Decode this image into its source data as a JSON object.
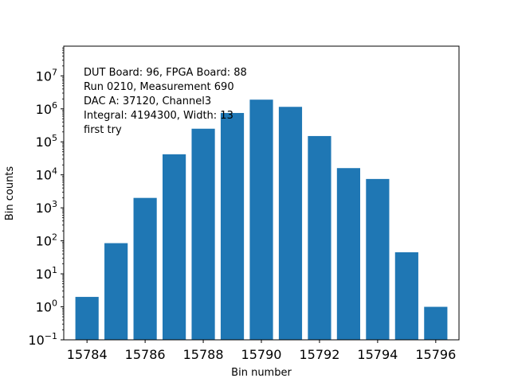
{
  "chart_data": {
    "type": "bar",
    "title": "",
    "xlabel": "Bin number",
    "ylabel": "Bin counts",
    "yscale": "log",
    "xlim": [
      15783.2,
      15796.8
    ],
    "ylim_log10": [
      -1,
      7.9
    ],
    "bar_color": "#1f77b4",
    "grid": false,
    "x": [
      15784,
      15785,
      15786,
      15787,
      15788,
      15789,
      15790,
      15791,
      15792,
      15793,
      15794,
      15795,
      15796
    ],
    "values": [
      2,
      85,
      2000,
      42000,
      250000,
      750000,
      1900000,
      1150000,
      150000,
      16000,
      7500,
      45,
      1
    ],
    "x_ticks": [
      {
        "value": 15784,
        "label": "15784"
      },
      {
        "value": 15786,
        "label": "15786"
      },
      {
        "value": 15788,
        "label": "15788"
      },
      {
        "value": 15790,
        "label": "15790"
      },
      {
        "value": 15792,
        "label": "15792"
      },
      {
        "value": 15794,
        "label": "15794"
      },
      {
        "value": 15796,
        "label": "15796"
      }
    ],
    "y_ticks": [
      {
        "exp": -1,
        "base": "10",
        "sup": "−1"
      },
      {
        "exp": 0,
        "base": "10",
        "sup": "0"
      },
      {
        "exp": 1,
        "base": "10",
        "sup": "1"
      },
      {
        "exp": 2,
        "base": "10",
        "sup": "2"
      },
      {
        "exp": 3,
        "base": "10",
        "sup": "3"
      },
      {
        "exp": 4,
        "base": "10",
        "sup": "4"
      },
      {
        "exp": 5,
        "base": "10",
        "sup": "5"
      },
      {
        "exp": 6,
        "base": "10",
        "sup": "6"
      },
      {
        "exp": 7,
        "base": "10",
        "sup": "7"
      }
    ],
    "annotation_lines": [
      "DUT Board: 96, FPGA Board: 88",
      "Run 0210, Measurement 690",
      "DAC A: 37120, Channel3",
      "Integral: 4194300, Width: 13",
      "first try"
    ]
  }
}
